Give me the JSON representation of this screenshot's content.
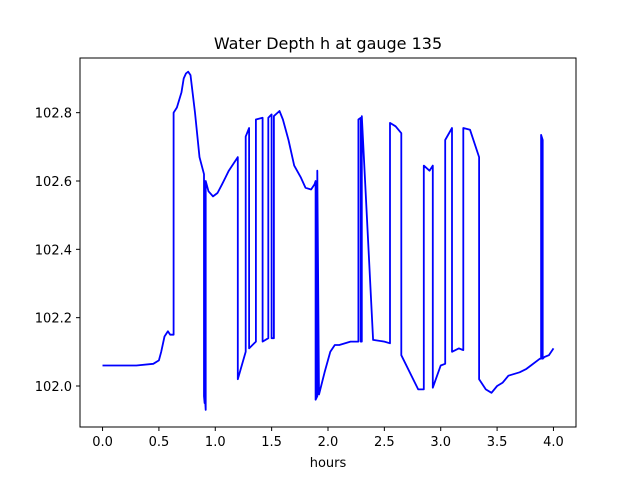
{
  "chart_data": {
    "type": "line",
    "title": "Water Depth h at gauge 135",
    "xlabel": "hours",
    "ylabel": "",
    "xlim": [
      -0.2,
      4.2
    ],
    "ylim": [
      101.88,
      102.96
    ],
    "grid": false,
    "legend": "none",
    "line_color": "#0000ff",
    "xticks": [
      0.0,
      0.5,
      1.0,
      1.5,
      2.0,
      2.5,
      3.0,
      3.5,
      4.0
    ],
    "xtick_labels": [
      "0.0",
      "0.5",
      "1.0",
      "1.5",
      "2.0",
      "2.5",
      "3.0",
      "3.5",
      "4.0"
    ],
    "yticks": [
      102.0,
      102.2,
      102.4,
      102.6,
      102.8
    ],
    "ytick_labels": [
      "102.0",
      "102.2",
      "102.4",
      "102.6",
      "102.8"
    ],
    "series": [
      {
        "x": [
          0.0,
          0.3,
          0.45,
          0.5,
          0.52,
          0.55,
          0.58,
          0.6,
          0.63,
          0.63,
          0.66,
          0.7,
          0.72,
          0.74,
          0.76,
          0.78,
          0.82,
          0.86,
          0.9,
          0.9,
          0.905,
          0.905,
          0.91,
          0.91,
          0.915,
          0.915,
          0.94,
          0.98,
          1.02,
          1.06,
          1.09,
          1.12,
          1.2,
          1.2,
          1.27,
          1.27,
          1.3,
          1.3,
          1.36,
          1.36,
          1.42,
          1.42,
          1.47,
          1.47,
          1.5,
          1.5,
          1.52,
          1.52,
          1.57,
          1.6,
          1.65,
          1.7,
          1.76,
          1.8,
          1.85,
          1.88,
          1.89,
          1.89,
          1.905,
          1.905,
          1.92,
          1.97,
          2.02,
          2.06,
          2.1,
          2.2,
          2.27,
          2.27,
          2.29,
          2.29,
          2.3,
          2.3,
          2.4,
          2.5,
          2.55,
          2.55,
          2.6,
          2.65,
          2.65,
          2.8,
          2.85,
          2.85,
          2.9,
          2.93,
          2.93,
          3.0,
          3.04,
          3.04,
          3.1,
          3.1,
          3.16,
          3.2,
          3.2,
          3.26,
          3.34,
          3.34,
          3.4,
          3.45,
          3.5,
          3.55,
          3.6,
          3.7,
          3.76,
          3.8,
          3.88,
          3.89,
          3.89,
          3.905,
          3.905,
          3.92,
          3.96,
          4.0
        ],
        "y": [
          102.06,
          102.06,
          102.065,
          102.075,
          102.1,
          102.145,
          102.16,
          102.15,
          102.15,
          102.8,
          102.815,
          102.86,
          102.9,
          102.915,
          102.92,
          102.91,
          102.8,
          102.67,
          102.62,
          101.97,
          101.95,
          102.6,
          102.58,
          101.96,
          101.93,
          102.6,
          102.57,
          102.555,
          102.565,
          102.59,
          102.61,
          102.63,
          102.67,
          102.02,
          102.1,
          102.73,
          102.755,
          102.11,
          102.13,
          102.78,
          102.785,
          102.13,
          102.14,
          102.785,
          102.795,
          102.14,
          102.14,
          102.79,
          102.805,
          102.78,
          102.72,
          102.645,
          102.61,
          102.58,
          102.575,
          102.59,
          102.6,
          101.96,
          101.97,
          102.63,
          101.975,
          102.04,
          102.1,
          102.12,
          102.12,
          102.13,
          102.13,
          102.78,
          102.785,
          102.13,
          102.13,
          102.79,
          102.135,
          102.13,
          102.125,
          102.77,
          102.76,
          102.74,
          102.09,
          101.99,
          101.99,
          102.645,
          102.63,
          102.645,
          101.995,
          102.06,
          102.065,
          102.72,
          102.755,
          102.1,
          102.11,
          102.105,
          102.755,
          102.75,
          102.67,
          102.02,
          101.99,
          101.98,
          102.0,
          102.01,
          102.03,
          102.04,
          102.05,
          102.06,
          102.08,
          102.08,
          102.735,
          102.72,
          102.08,
          102.085,
          102.09,
          102.11
        ]
      }
    ]
  }
}
